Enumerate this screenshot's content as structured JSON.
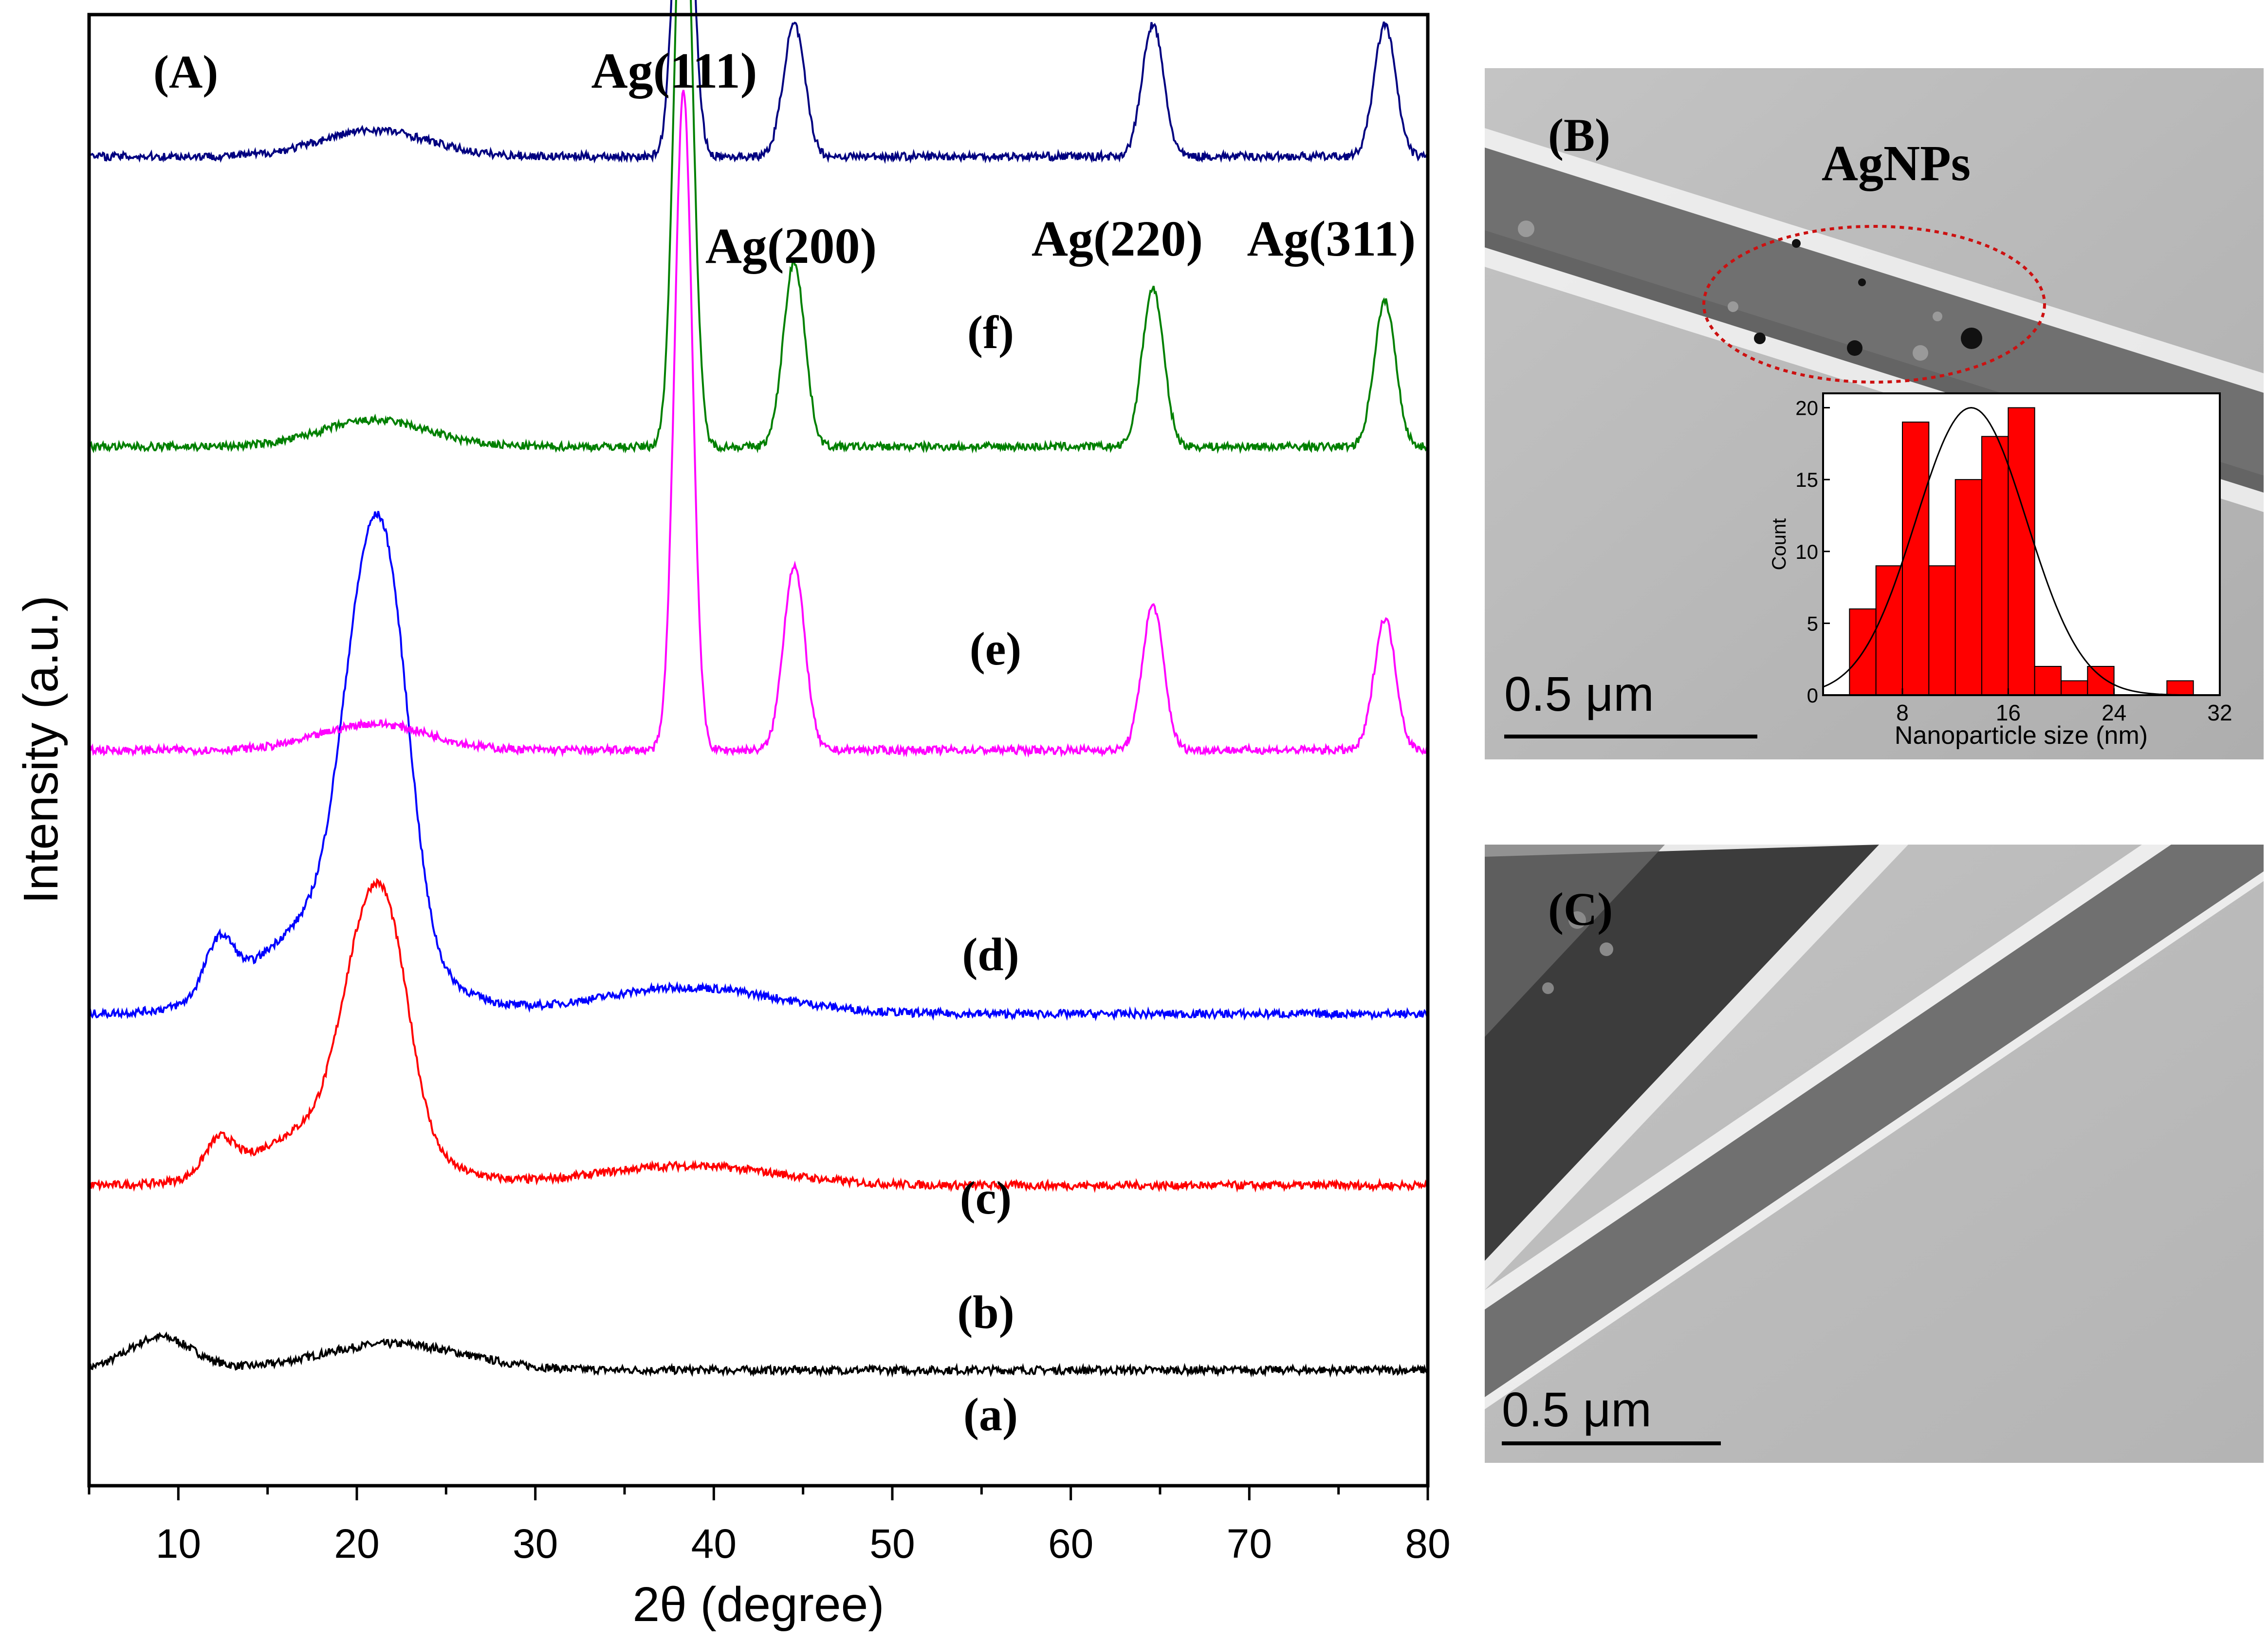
{
  "panel_A": {
    "label": "(A)",
    "peak_labels": [
      "Ag(111)",
      "Ag(200)",
      "Ag(220)",
      "Ag(311)"
    ],
    "curve_labels": [
      "(a)",
      "(b)",
      "(c)",
      "(d)",
      "(e)",
      "(f)"
    ]
  },
  "panel_B": {
    "label": "(B)",
    "annotation": "AgNPs",
    "scale_bar": "0.5 μm"
  },
  "panel_C": {
    "label": "(C)",
    "scale_bar": "0.5 μm"
  },
  "chart_data": [
    {
      "type": "line",
      "title": "",
      "xlabel": "2θ (degree)",
      "ylabel": "Intensity (a.u.)",
      "xlim": [
        5,
        80
      ],
      "xticks": [
        10,
        20,
        30,
        40,
        50,
        60,
        70,
        80
      ],
      "yticks_shown": false,
      "series": [
        {
          "name": "(a)",
          "color": "#000000",
          "baseline": 0.05,
          "peaks": [
            [
              9,
              0.025,
              1.8
            ],
            [
              22,
              0.02,
              4
            ]
          ]
        },
        {
          "name": "(b)",
          "color": "#ff0000",
          "baseline": 0.19,
          "peaks": [
            [
              12.3,
              0.025,
              0.8
            ],
            [
              20.3,
              0.12,
              1.3
            ],
            [
              22,
              0.115,
              1.2
            ],
            [
              19,
              0.05,
              4
            ],
            [
              38.5,
              0.015,
              5
            ]
          ]
        },
        {
          "name": "(c)",
          "color": "#0000ff",
          "baseline": 0.32,
          "peaks": [
            [
              12.3,
              0.04,
              0.8
            ],
            [
              20.3,
              0.2,
              1.3
            ],
            [
              22,
              0.19,
              1.2
            ],
            [
              19,
              0.08,
              4
            ],
            [
              38.5,
              0.02,
              5
            ]
          ]
        },
        {
          "name": "(d)",
          "color": "#ff00ff",
          "baseline": 0.52,
          "peaks": [
            [
              21,
              0.02,
              3
            ],
            [
              38.3,
              0.5,
              0.5
            ],
            [
              44.5,
              0.14,
              0.6
            ],
            [
              64.6,
              0.11,
              0.6
            ],
            [
              77.6,
              0.1,
              0.6
            ]
          ]
        },
        {
          "name": "(e)",
          "color": "#008000",
          "baseline": 0.75,
          "peaks": [
            [
              21,
              0.02,
              3
            ],
            [
              38.3,
              0.48,
              0.5
            ],
            [
              44.5,
              0.14,
              0.6
            ],
            [
              64.6,
              0.12,
              0.6
            ],
            [
              77.6,
              0.11,
              0.6
            ]
          ]
        },
        {
          "name": "(f)",
          "color": "#000080",
          "baseline": 0.97,
          "peaks": [
            [
              21,
              0.02,
              3
            ],
            [
              38.3,
              0.3,
              0.5
            ],
            [
              44.5,
              0.1,
              0.6
            ],
            [
              64.6,
              0.1,
              0.6
            ],
            [
              77.6,
              0.1,
              0.6
            ]
          ]
        }
      ]
    },
    {
      "type": "bar",
      "title": "",
      "xlabel": "Nanoparticle size (nm)",
      "ylabel": "Count",
      "xlim": [
        2,
        32
      ],
      "ylim": [
        0,
        21
      ],
      "xticks": [
        8,
        16,
        24,
        32
      ],
      "yticks": [
        0,
        5,
        10,
        15,
        20
      ],
      "bin_width": 2,
      "bin_starts": [
        4,
        6,
        8,
        10,
        12,
        14,
        16,
        18,
        20,
        22,
        28
      ],
      "values": [
        6,
        9,
        19,
        9,
        15,
        18,
        20,
        2,
        1,
        2,
        1
      ],
      "bar_color": "#ff0000",
      "fit": {
        "type": "gaussian",
        "mean": 13.2,
        "sigma": 4.2,
        "peak": 20
      }
    }
  ]
}
